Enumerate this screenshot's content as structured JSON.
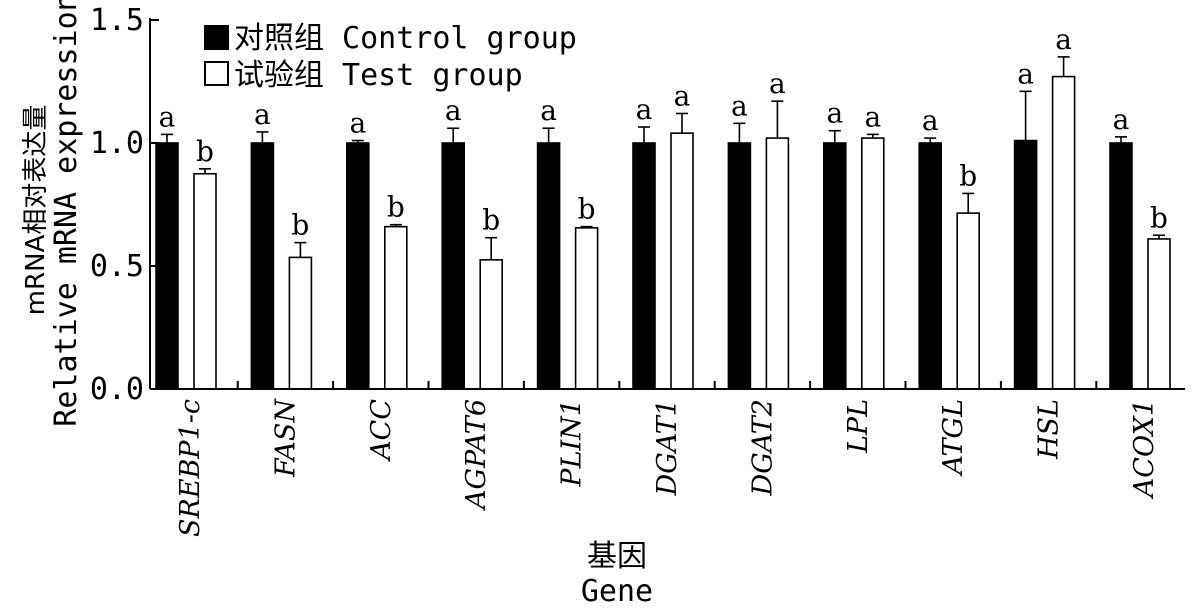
{
  "chart_data": {
    "type": "bar",
    "ylabel_cn": "mRNA相对表达量",
    "ylabel_en": "Relative mRNA expression",
    "xlabel_cn": "基因",
    "xlabel_en": "Gene",
    "ylim": [
      0,
      1.5
    ],
    "yticks": [
      "0.0",
      "0.5",
      "1.0",
      "1.5"
    ],
    "ytick_values": [
      0,
      0.5,
      1.0,
      1.5
    ],
    "legend_position": "top-left",
    "grid": false,
    "categories": [
      "SREBP1-c",
      "FASN",
      "ACC",
      "AGPAT6",
      "PLIN1",
      "DGAT1",
      "DGAT2",
      "LPL",
      "ATGL",
      "HSL",
      "ACOX1"
    ],
    "series": [
      {
        "name": "对照组 Control group",
        "fill": "#000000",
        "values": [
          1.0,
          1.0,
          1.0,
          1.0,
          1.0,
          1.0,
          1.0,
          1.0,
          1.0,
          1.01,
          1.0
        ],
        "errors": [
          0.035,
          0.045,
          0.01,
          0.06,
          0.06,
          0.065,
          0.08,
          0.05,
          0.02,
          0.2,
          0.025
        ],
        "labels": [
          "a",
          "a",
          "a",
          "a",
          "a",
          "a",
          "a",
          "a",
          "a",
          "a",
          "a"
        ]
      },
      {
        "name": "试验组 Test group",
        "fill": "#ffffff",
        "values": [
          0.875,
          0.535,
          0.66,
          0.525,
          0.655,
          1.04,
          1.02,
          1.02,
          0.715,
          1.27,
          0.61
        ],
        "errors": [
          0.02,
          0.06,
          0.008,
          0.09,
          0.005,
          0.08,
          0.15,
          0.015,
          0.08,
          0.08,
          0.015
        ],
        "labels": [
          "b",
          "b",
          "b",
          "b",
          "b",
          "a",
          "a",
          "a",
          "b",
          "a",
          "b"
        ]
      }
    ]
  }
}
